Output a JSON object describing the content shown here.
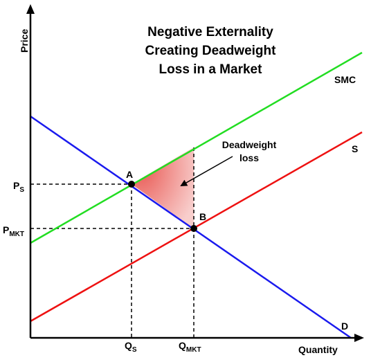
{
  "title": {
    "line1": "Negative Externality",
    "line2": "Creating Deadweight",
    "line3": "Loss in a Market"
  },
  "axes": {
    "y_label": "Price",
    "x_label": "Quantity"
  },
  "curves": {
    "smc": {
      "label": "SMC",
      "color": "#22dd22"
    },
    "supply": {
      "label": "S",
      "color": "#ee1111"
    },
    "demand": {
      "label": "D",
      "color": "#1a1aee"
    }
  },
  "points": {
    "a": {
      "label": "A"
    },
    "b": {
      "label": "B"
    }
  },
  "ticks": {
    "ps_main": "P",
    "ps_sub": "S",
    "pmkt_main": "P",
    "pmkt_sub": "MKT",
    "qs_main": "Q",
    "qs_sub": "S",
    "qmkt_main": "Q",
    "qmkt_sub": "MKT"
  },
  "deadweight": {
    "line1": "Deadweight",
    "line2": "loss",
    "fill_color": "#e8504a"
  }
}
